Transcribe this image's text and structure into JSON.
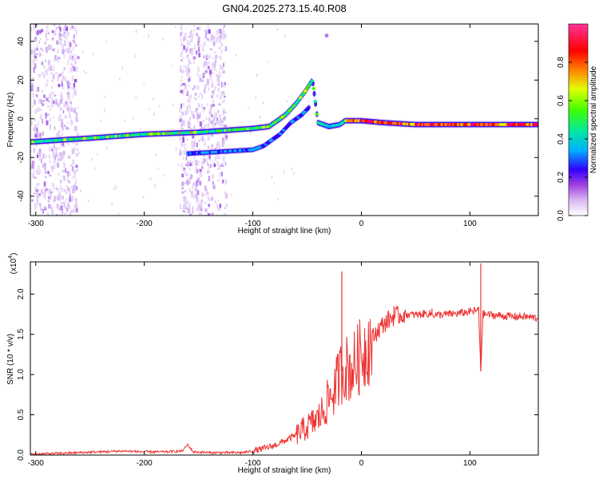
{
  "chart_data": [
    {
      "type": "heatmap",
      "title": "GN04.2025.273.15.40.R08",
      "xlabel": "Height of straight line (km)",
      "ylabel": "Frequency (Hz)",
      "xlim": [
        -305,
        163
      ],
      "ylim": [
        -50,
        49
      ],
      "xticks": [
        -300,
        -200,
        -100,
        0,
        100
      ],
      "yticks": [
        -40,
        -20,
        0,
        20,
        40
      ],
      "colorbar": {
        "label": "Normalized spectral amplitude",
        "range": [
          0,
          1
        ],
        "ticks": [
          0.0,
          0.2,
          0.4,
          0.6,
          0.8
        ],
        "colors": [
          "#ffffff",
          "#d9b8f2",
          "#a040e0",
          "#3000ff",
          "#00b0ff",
          "#00e8a0",
          "#40ff00",
          "#e0ff00",
          "#ff8000",
          "#ff0000",
          "#ff0080",
          "#ff3399"
        ]
      },
      "ridge": {
        "description_points": [
          [
            -305,
            -12
          ],
          [
            -250,
            -10
          ],
          [
            -200,
            -8
          ],
          [
            -150,
            -7
          ],
          [
            -100,
            -5
          ],
          [
            -85,
            -4
          ],
          [
            -70,
            2
          ],
          [
            -60,
            8
          ],
          [
            -52,
            14
          ],
          [
            -45,
            20
          ],
          [
            -40,
            -2
          ],
          [
            -30,
            -4
          ],
          [
            -20,
            -3
          ],
          [
            -15,
            -1
          ],
          [
            0,
            -1
          ],
          [
            20,
            -2
          ],
          [
            50,
            -3
          ],
          [
            100,
            -3
          ],
          [
            163,
            -3
          ]
        ],
        "branch_points": [
          [
            -160,
            -18
          ],
          [
            -130,
            -17
          ],
          [
            -100,
            -16
          ],
          [
            -90,
            -14
          ],
          [
            -75,
            -8
          ],
          [
            -65,
            -2
          ],
          [
            -55,
            2
          ],
          [
            -48,
            6
          ]
        ],
        "peak": {
          "x": -32,
          "y": 43
        }
      },
      "noise_bands": [
        [
          -305,
          -262
        ],
        [
          -168,
          -125
        ]
      ]
    },
    {
      "type": "line",
      "xlabel": "Height of straight line (km)",
      "ylabel": "SNR (10 * v/v)",
      "scale_note": "(x10",
      "scale_exp": "4",
      "xlim": [
        -305,
        163
      ],
      "ylim": [
        0,
        2.4
      ],
      "xticks": [
        -300,
        -200,
        -100,
        0,
        100
      ],
      "yticks": [
        0.0,
        0.5,
        1.0,
        1.5,
        2.0
      ],
      "color": "#ee3333",
      "series": [
        {
          "x": [
            -305,
            -280,
            -260,
            -240,
            -220,
            -200,
            -180,
            -165,
            -160,
            -155,
            -140,
            -120,
            -110,
            -100,
            -90,
            -80,
            -70,
            -60,
            -50,
            -40,
            -35,
            -30,
            -25,
            -20,
            -15,
            -10,
            -5,
            0,
            5,
            10,
            15,
            20,
            25,
            30,
            40,
            50,
            60,
            70,
            80,
            90,
            100,
            108,
            110,
            112,
            120,
            130,
            140,
            150,
            163
          ],
          "values": [
            0.01,
            0.02,
            0.03,
            0.04,
            0.05,
            0.04,
            0.04,
            0.05,
            0.13,
            0.04,
            0.03,
            0.03,
            0.03,
            0.05,
            0.08,
            0.12,
            0.18,
            0.25,
            0.35,
            0.45,
            0.55,
            0.7,
            0.8,
            1.0,
            1.1,
            1.05,
            1.15,
            1.25,
            1.35,
            1.45,
            1.55,
            1.62,
            1.68,
            1.72,
            1.75,
            1.74,
            1.76,
            1.74,
            1.75,
            1.76,
            1.78,
            1.8,
            1.05,
            1.75,
            1.74,
            1.73,
            1.72,
            1.72,
            1.7
          ],
          "spikes": [
            {
              "x": -18,
              "y": 2.28
            },
            {
              "x": 110,
              "y": 2.38
            },
            {
              "x": 110,
              "y": 1.05
            },
            {
              "x": 30,
              "y": 1.85
            },
            {
              "x": 65,
              "y": 1.82
            }
          ]
        }
      ]
    }
  ]
}
